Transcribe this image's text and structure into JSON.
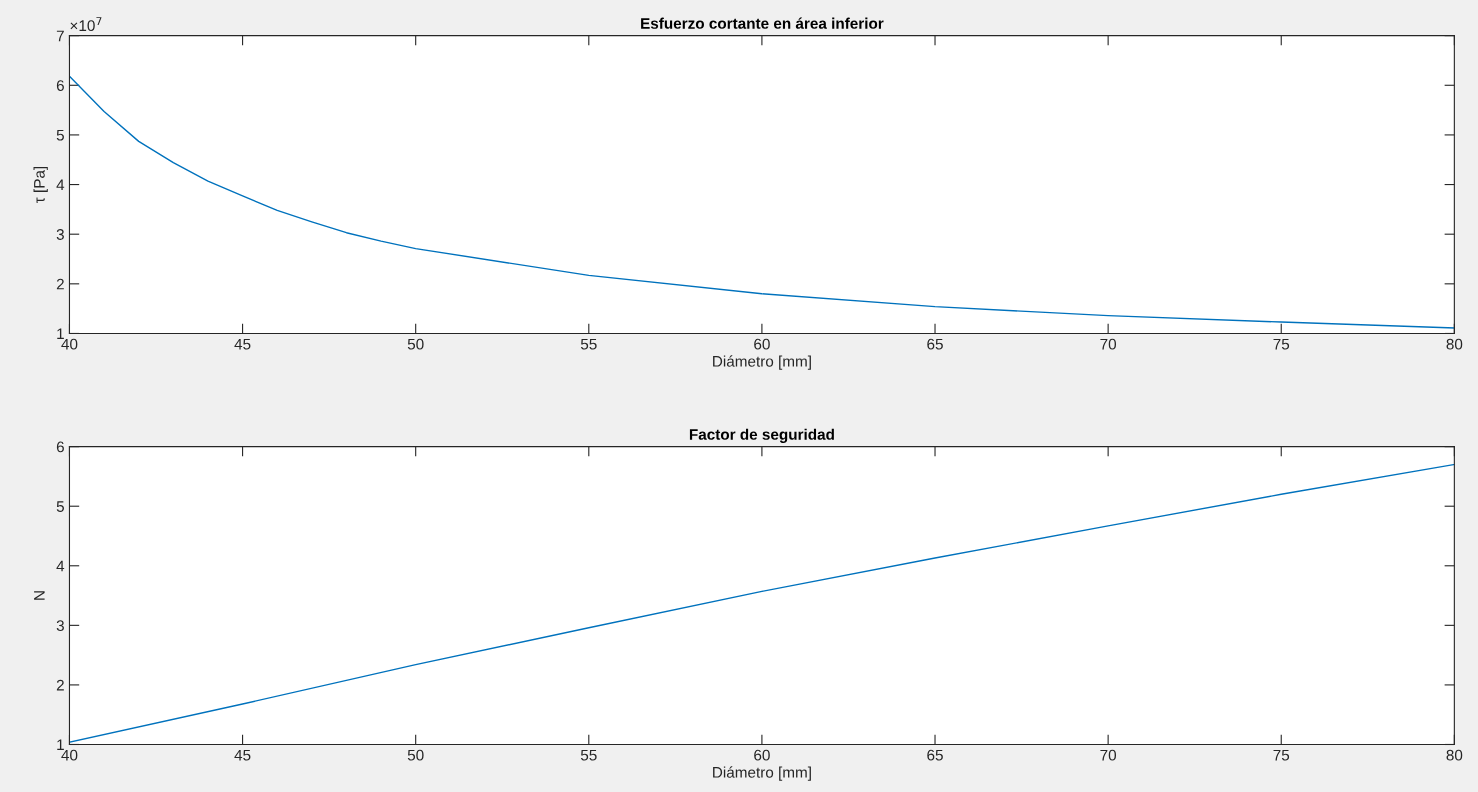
{
  "chart_data": [
    {
      "type": "line",
      "title": "Esfuerzo cortante en área inferior",
      "xlabel": "Diámetro [mm]",
      "ylabel": "τ [Pa]",
      "x": [
        40,
        41,
        42,
        43,
        44,
        45,
        46,
        47,
        48,
        49,
        50,
        55,
        60,
        65,
        70,
        75,
        80
      ],
      "series": [
        {
          "color": "#0072bd",
          "values": [
            6.18,
            5.47,
            4.87,
            4.44,
            4.07,
            3.77,
            3.48,
            3.25,
            3.03,
            2.86,
            2.71,
            2.17,
            1.8,
            1.54,
            1.36,
            1.23,
            1.11
          ]
        }
      ],
      "xlim": [
        40,
        80
      ],
      "xticks": [
        40,
        45,
        50,
        55,
        60,
        65,
        70,
        75,
        80
      ],
      "ylim": [
        1,
        7
      ],
      "yticks": [
        1,
        2,
        3,
        4,
        5,
        6,
        7
      ],
      "annotations": [
        "×10$^{7}$"
      ],
      "grid": false
    },
    {
      "type": "line",
      "title": "Factor de seguridad",
      "xlabel": "Diámetro [mm]",
      "ylabel": "N",
      "x": [
        40,
        45,
        50,
        55,
        60,
        65,
        70,
        75,
        80
      ],
      "series": [
        {
          "color": "#0072bd",
          "values": [
            1.04,
            1.68,
            2.34,
            2.96,
            3.57,
            4.13,
            4.67,
            5.2,
            5.7
          ]
        }
      ],
      "xlim": [
        40,
        80
      ],
      "xticks": [
        40,
        45,
        50,
        55,
        60,
        65,
        70,
        75,
        80
      ],
      "ylim": [
        1,
        6
      ],
      "yticks": [
        1,
        2,
        3,
        4,
        5,
        6
      ],
      "grid": false
    }
  ]
}
